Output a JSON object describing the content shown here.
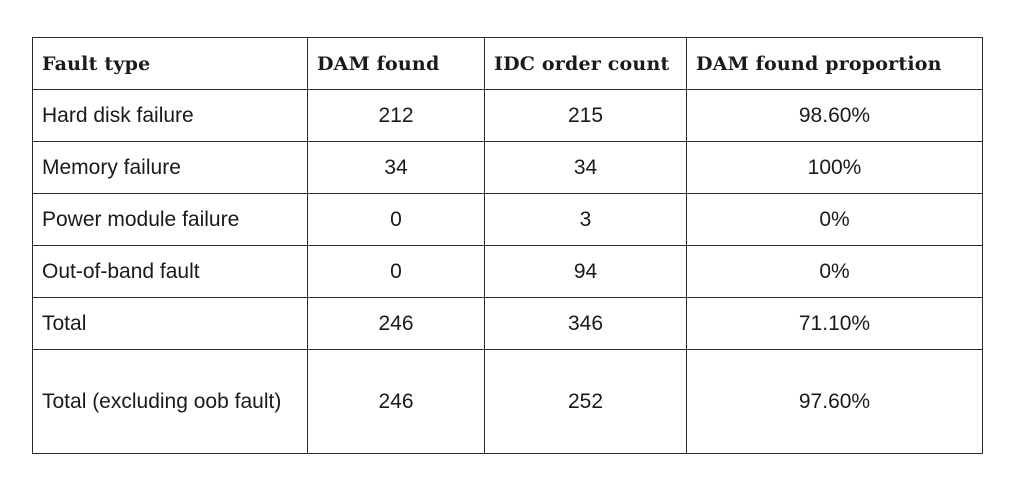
{
  "table": {
    "headers": [
      "Fault type",
      "DAM found",
      "IDC order count",
      "DAM found proportion"
    ],
    "rows": [
      [
        "Hard disk failure",
        "212",
        "215",
        "98.60%"
      ],
      [
        "Memory failure",
        "34",
        "34",
        "100%"
      ],
      [
        "Power module failure",
        "0",
        "3",
        "0%"
      ],
      [
        "Out-of-band fault",
        "0",
        "94",
        "0%"
      ],
      [
        "Total",
        "246",
        "346",
        "71.10%"
      ],
      [
        "Total (excluding oob fault)",
        "246",
        "252",
        "97.60%"
      ]
    ]
  }
}
